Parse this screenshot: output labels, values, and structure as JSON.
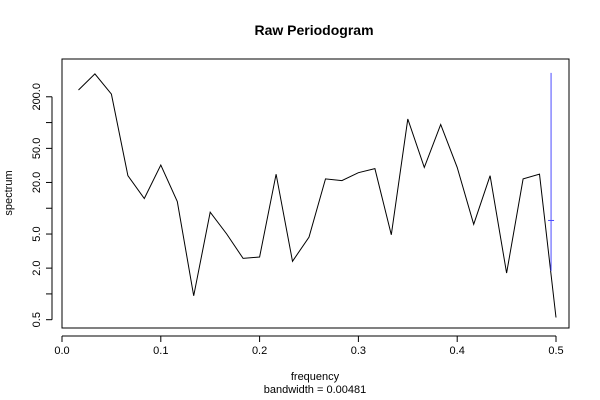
{
  "chart_data": {
    "type": "line",
    "title": "Raw Periodogram",
    "xlabel": "frequency",
    "xlabel_sub": "bandwidth = 0.00481",
    "ylabel": "spectrum",
    "y_scale": "log",
    "xlim": [
      0.0,
      0.5
    ],
    "ylim": [
      0.4,
      400
    ],
    "x_ticks": [
      0.0,
      0.1,
      0.2,
      0.3,
      0.4,
      0.5
    ],
    "x_tick_labels": [
      "0.0",
      "0.1",
      "0.2",
      "0.3",
      "0.4",
      "0.5"
    ],
    "y_major_ticks": [
      0.5,
      2.0,
      5.0,
      20.0,
      50.0,
      200.0
    ],
    "y_tick_labels": [
      "0.5",
      "2.0",
      "5.0",
      "20.0",
      "50.0",
      "200.0"
    ],
    "y_minor_ticks": [
      1,
      10,
      100
    ],
    "grid": false,
    "series": [
      {
        "color": "#000000",
        "x": [
          0.0167,
          0.0333,
          0.05,
          0.0667,
          0.0833,
          0.1,
          0.1167,
          0.1333,
          0.15,
          0.1667,
          0.1833,
          0.2,
          0.2167,
          0.2333,
          0.25,
          0.2667,
          0.2833,
          0.3,
          0.3167,
          0.3333,
          0.35,
          0.3667,
          0.3833,
          0.4,
          0.4167,
          0.4333,
          0.45,
          0.4667,
          0.4833,
          0.5
        ],
        "y": [
          240,
          370,
          215,
          24,
          13,
          32,
          12,
          0.95,
          9,
          5,
          2.6,
          2.7,
          25,
          2.4,
          4.6,
          22,
          21,
          26,
          29,
          4.9,
          110,
          30,
          95,
          30,
          6.5,
          24,
          1.75,
          22,
          25,
          0.53
        ]
      }
    ],
    "confidence_interval": {
      "color": "#4b4bff",
      "x": 0.495,
      "lower": 1.85,
      "upper": 380,
      "center": 7.2
    }
  }
}
